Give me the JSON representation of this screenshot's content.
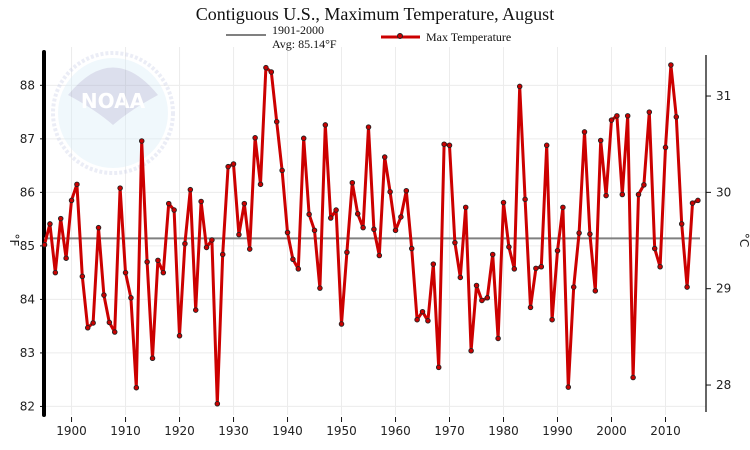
{
  "chart_data": {
    "type": "line",
    "title": "Contiguous U.S., Maximum Temperature, August",
    "xlabel": "",
    "ylabel": "°F",
    "ylabel_right": "°C",
    "xlim": [
      1894.9,
      2017.5
    ],
    "ylim": [
      81.84,
      88.66
    ],
    "x_ticks": [
      1900,
      1910,
      1920,
      1930,
      1940,
      1950,
      1960,
      1970,
      1980,
      1990,
      2000,
      2010
    ],
    "y_ticks": [
      82,
      83,
      84,
      85,
      86,
      87,
      88
    ],
    "y_right_ticks": [
      28,
      29,
      30,
      31
    ],
    "grid": true,
    "legend_placement": "top",
    "colors": {
      "series": "#cc0000",
      "average": "#808080",
      "marker_edge": "#222222"
    },
    "average": {
      "label_line1": "1901-2000",
      "label_line2": "Avg: 85.14°F",
      "value": 85.14
    },
    "series": [
      {
        "name": "Max Temperature",
        "x": [
          1895,
          1896,
          1897,
          1898,
          1899,
          1900,
          1901,
          1902,
          1903,
          1904,
          1905,
          1906,
          1907,
          1908,
          1909,
          1910,
          1911,
          1912,
          1913,
          1914,
          1915,
          1916,
          1917,
          1918,
          1919,
          1920,
          1921,
          1922,
          1923,
          1924,
          1925,
          1926,
          1927,
          1928,
          1929,
          1930,
          1931,
          1932,
          1933,
          1934,
          1935,
          1936,
          1937,
          1938,
          1939,
          1940,
          1941,
          1942,
          1943,
          1944,
          1945,
          1946,
          1947,
          1948,
          1949,
          1950,
          1951,
          1952,
          1953,
          1954,
          1955,
          1956,
          1957,
          1958,
          1959,
          1960,
          1961,
          1962,
          1963,
          1964,
          1965,
          1966,
          1967,
          1968,
          1969,
          1970,
          1971,
          1972,
          1973,
          1974,
          1975,
          1976,
          1977,
          1978,
          1979,
          1980,
          1981,
          1982,
          1983,
          1984,
          1985,
          1986,
          1987,
          1988,
          1989,
          1990,
          1991,
          1992,
          1993,
          1994,
          1995,
          1996,
          1997,
          1998,
          1999,
          2000,
          2001,
          2002,
          2003,
          2004,
          2005,
          2006,
          2007,
          2008,
          2009,
          2010,
          2011,
          2012,
          2013,
          2014,
          2015,
          2016
        ],
        "values": [
          85.02,
          85.41,
          84.5,
          85.51,
          84.77,
          85.85,
          86.15,
          84.43,
          83.47,
          83.56,
          85.34,
          84.08,
          83.57,
          83.39,
          86.08,
          84.5,
          84.03,
          82.35,
          86.96,
          84.7,
          82.9,
          84.73,
          84.5,
          85.79,
          85.67,
          83.32,
          85.04,
          86.05,
          83.8,
          85.83,
          84.97,
          85.11,
          82.05,
          84.84,
          86.48,
          86.53,
          85.21,
          85.79,
          84.94,
          87.02,
          86.15,
          88.33,
          88.25,
          87.32,
          86.41,
          85.25,
          84.75,
          84.57,
          87.01,
          85.59,
          85.29,
          84.21,
          87.26,
          85.52,
          85.67,
          83.54,
          84.88,
          86.18,
          85.6,
          85.34,
          87.22,
          85.31,
          84.82,
          86.66,
          86.01,
          85.29,
          85.54,
          86.03,
          84.95,
          83.62,
          83.77,
          83.6,
          84.66,
          82.73,
          86.9,
          86.88,
          85.06,
          84.41,
          85.72,
          83.04,
          84.26,
          83.98,
          84.03,
          84.84,
          83.27,
          85.81,
          84.98,
          84.57,
          87.98,
          85.87,
          83.85,
          84.58,
          84.61,
          86.88,
          83.62,
          84.91,
          85.72,
          82.36,
          84.23,
          85.24,
          87.13,
          85.22,
          84.16,
          86.97,
          85.94,
          87.35,
          87.43,
          85.96,
          87.43,
          82.54,
          85.96,
          86.14,
          87.5,
          84.95,
          84.61,
          86.84,
          88.38,
          87.41,
          85.41,
          84.23,
          85.8,
          85.85
        ]
      }
    ]
  },
  "watermark": {
    "logo_text": "NOAA",
    "ring_text": "NATIONAL OCEANIC AND ATMOSPHERIC ADMINISTRATION · U.S. DEPARTMENT OF COMMERCE"
  }
}
